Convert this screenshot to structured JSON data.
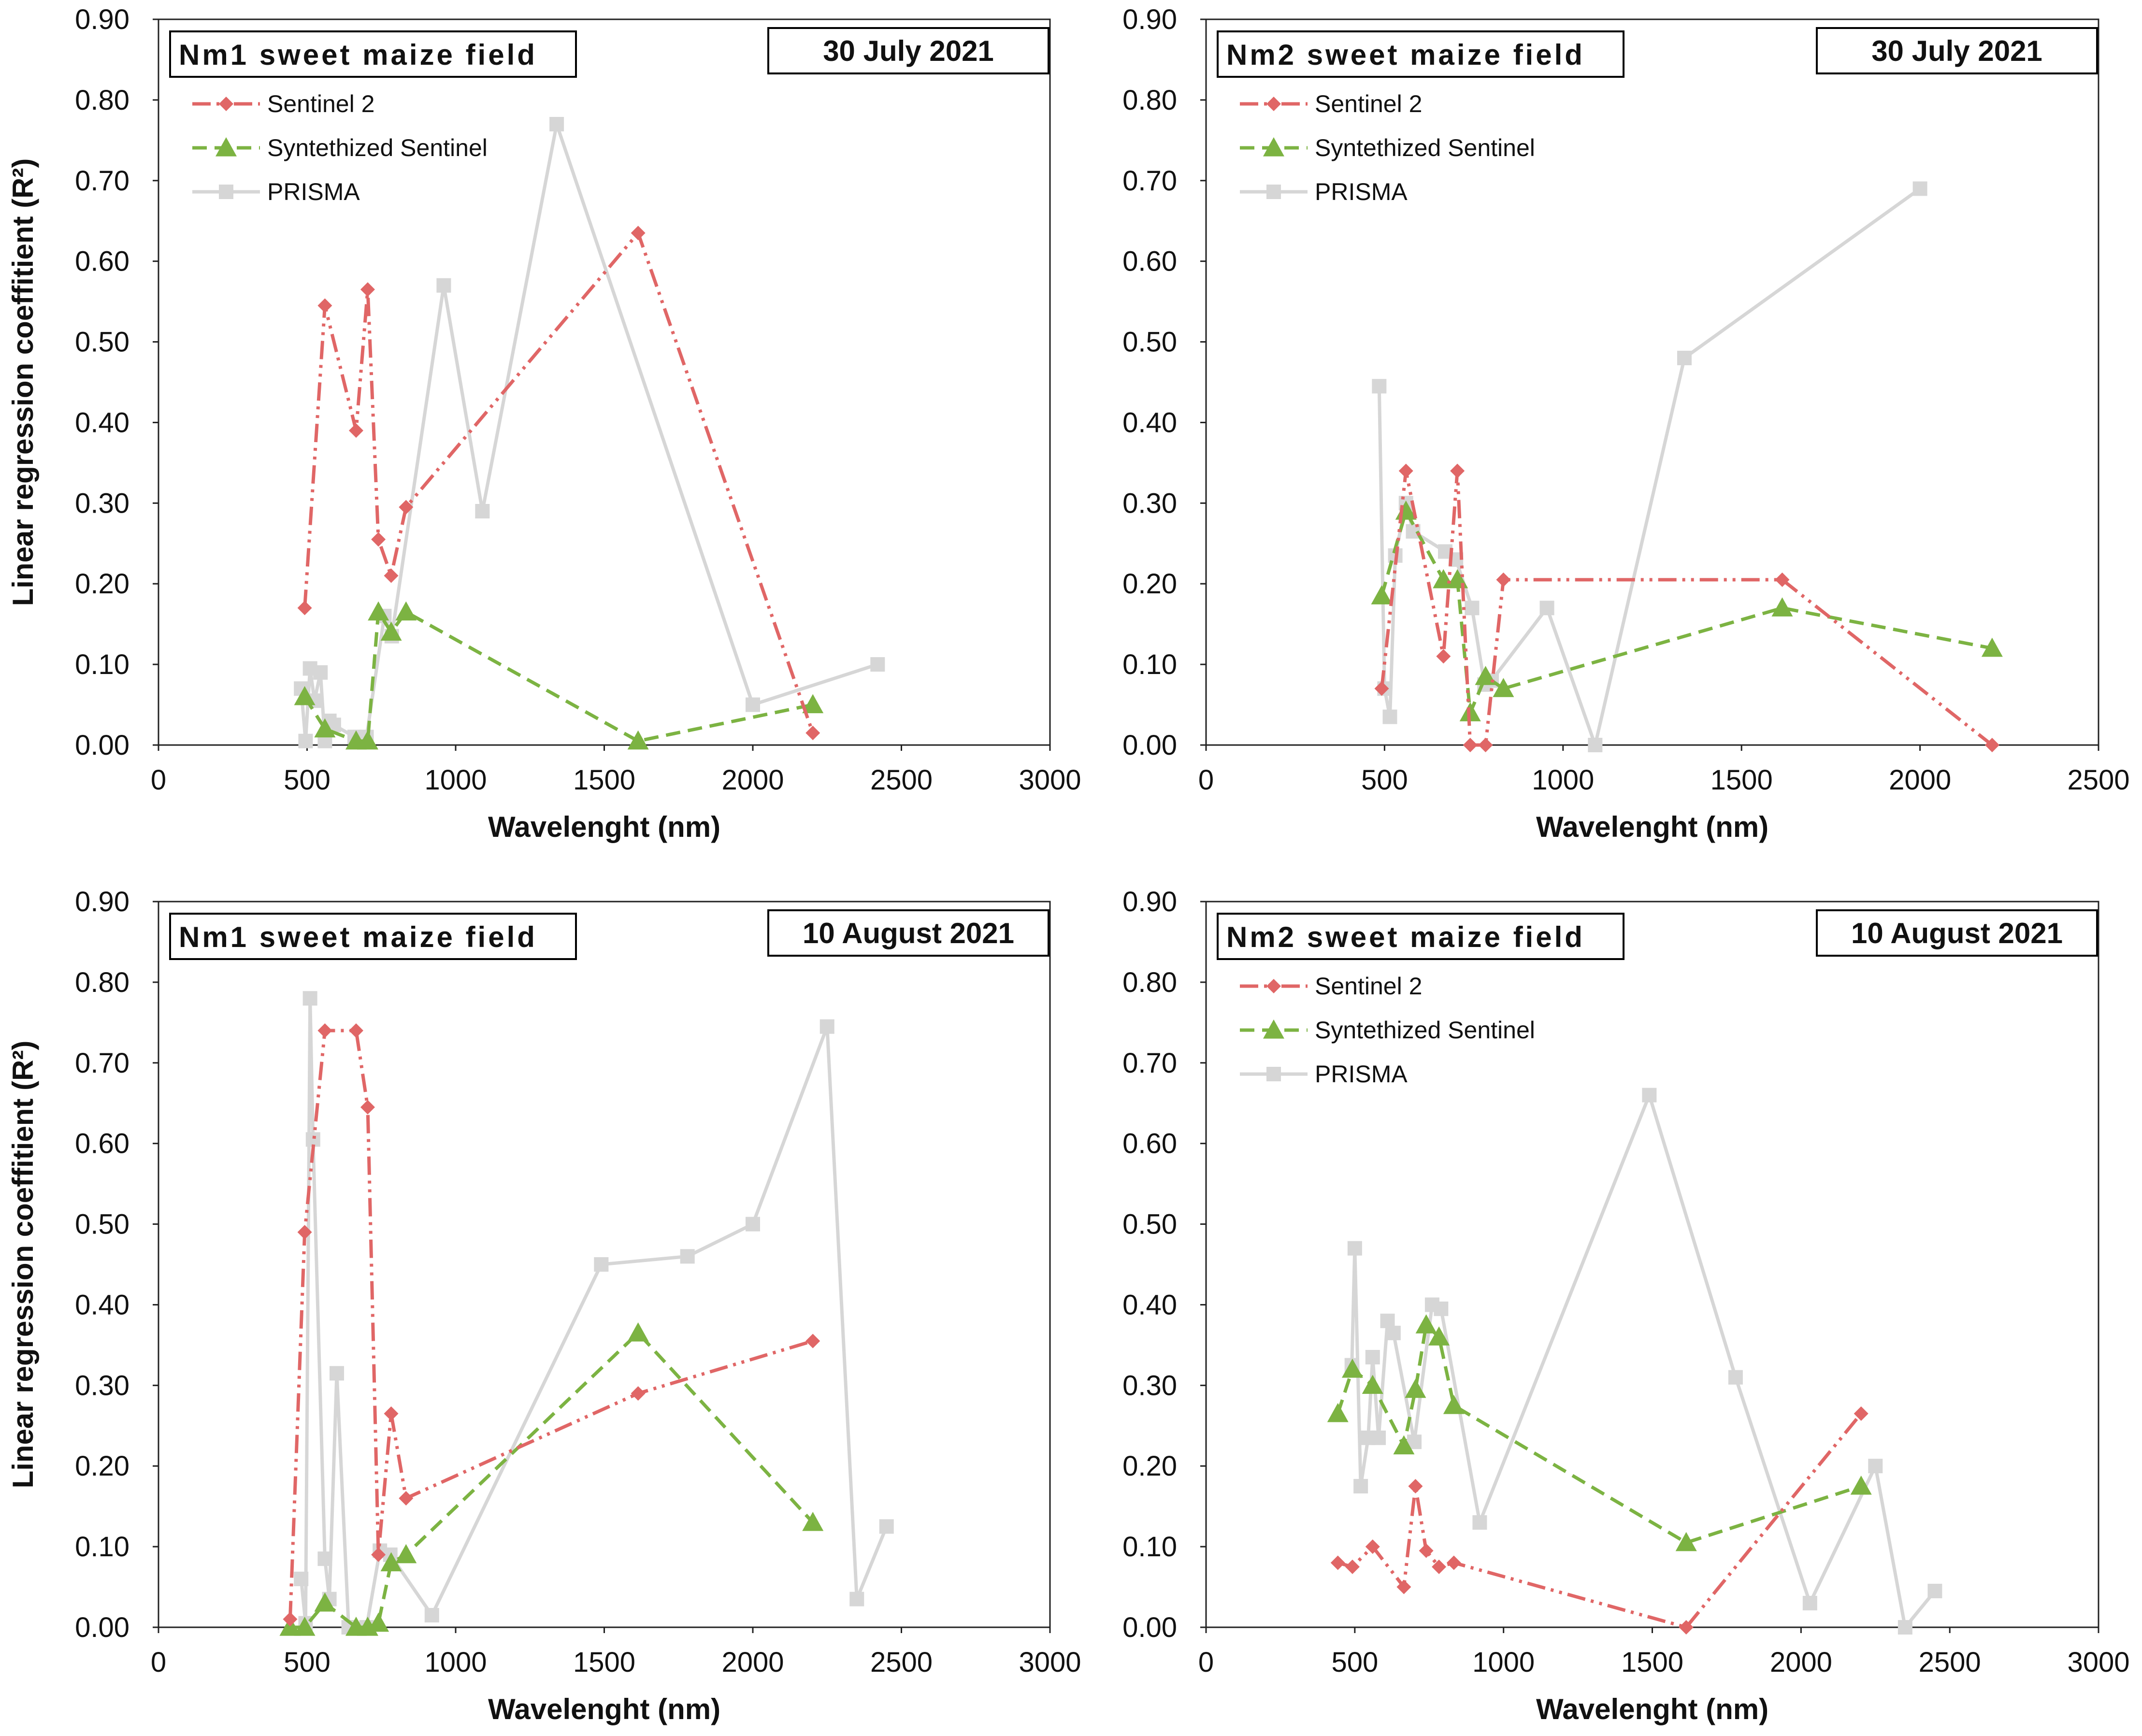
{
  "colors": {
    "sentinel2": "#e06666",
    "synth": "#7cb342",
    "prisma": "#d6d6d6",
    "axis": "#222222"
  },
  "chart_data": [
    {
      "type": "line",
      "title": "Nm1 sweet maize field",
      "date": "30 July 2021",
      "xlabel": "Wavelenght (nm)",
      "ylabel": "Linear regression coeffitient (R²)",
      "xlim": [
        0,
        3000
      ],
      "ylim": [
        0,
        0.9
      ],
      "x_ticks": [
        "0",
        "500",
        "1000",
        "1500",
        "2000",
        "2500",
        "3000"
      ],
      "y_ticks": [
        "0.00",
        "0.10",
        "0.20",
        "0.30",
        "0.40",
        "0.50",
        "0.60",
        "0.70",
        "0.80",
        "0.90"
      ],
      "legend": {
        "position": "top-left",
        "entries": [
          "Sentinel 2",
          "Syntethized Sentinel",
          "PRISMA"
        ]
      },
      "series": [
        {
          "name": "Sentinel 2",
          "marker": "diamond",
          "x": [
            492,
            560,
            665,
            704,
            740,
            783,
            833,
            1614,
            2202
          ],
          "y": [
            0.17,
            0.545,
            0.39,
            0.565,
            0.255,
            0.21,
            0.295,
            0.635,
            0.015
          ]
        },
        {
          "name": "Syntethized Sentinel",
          "marker": "triangle",
          "x": [
            492,
            560,
            665,
            704,
            740,
            783,
            833,
            1614,
            2202
          ],
          "y": [
            0.06,
            0.02,
            0.005,
            0.005,
            0.165,
            0.14,
            0.165,
            0.005,
            0.05
          ]
        },
        {
          "name": "PRISMA",
          "marker": "square",
          "x": [
            480,
            495,
            510,
            525,
            545,
            560,
            575,
            590,
            660,
            680,
            700,
            760,
            785,
            960,
            1090,
            1340,
            2000,
            2420
          ],
          "y": [
            0.07,
            0.005,
            0.095,
            0.055,
            0.09,
            0.005,
            0.03,
            0.025,
            0.01,
            0.01,
            0.01,
            0.16,
            0.135,
            0.57,
            0.29,
            0.77,
            0.05,
            0.1
          ]
        }
      ]
    },
    {
      "type": "line",
      "title": "Nm2 sweet maize field",
      "date": "30 July 2021",
      "xlabel": "Wavelenght (nm)",
      "ylabel": "",
      "xlim": [
        0,
        2500
      ],
      "ylim": [
        0,
        0.9
      ],
      "x_ticks": [
        "0",
        "500",
        "1000",
        "1500",
        "2000",
        "2500"
      ],
      "y_ticks": [
        "0.00",
        "0.10",
        "0.20",
        "0.30",
        "0.40",
        "0.50",
        "0.60",
        "0.70",
        "0.80",
        "0.90"
      ],
      "legend": {
        "position": "top-left",
        "entries": [
          "Sentinel 2",
          "Syntethized Sentinel",
          "PRISMA"
        ]
      },
      "series": [
        {
          "name": "Sentinel 2",
          "marker": "diamond",
          "x": [
            492,
            560,
            665,
            704,
            740,
            783,
            833,
            1614,
            2202
          ],
          "y": [
            0.07,
            0.34,
            0.11,
            0.34,
            0.0,
            0.0,
            0.205,
            0.205,
            0.0
          ]
        },
        {
          "name": "Syntethized Sentinel",
          "marker": "triangle",
          "x": [
            492,
            560,
            665,
            704,
            740,
            783,
            833,
            1614,
            2202
          ],
          "y": [
            0.185,
            0.29,
            0.205,
            0.205,
            0.04,
            0.085,
            0.07,
            0.17,
            0.12
          ]
        },
        {
          "name": "PRISMA",
          "marker": "square",
          "x": [
            485,
            500,
            515,
            530,
            560,
            580,
            670,
            700,
            745,
            780,
            800,
            955,
            1090,
            1340,
            2000
          ],
          "y": [
            0.445,
            0.07,
            0.035,
            0.235,
            0.3,
            0.265,
            0.24,
            0.23,
            0.17,
            0.075,
            0.08,
            0.17,
            0.0,
            0.48,
            0.69
          ]
        }
      ]
    },
    {
      "type": "line",
      "title": "Nm1 sweet maize field",
      "date": "10 August 2021",
      "xlabel": "Wavelenght (nm)",
      "ylabel": "Linear regression coeffitient (R²)",
      "xlim": [
        0,
        3000
      ],
      "ylim": [
        0,
        0.9
      ],
      "x_ticks": [
        "0",
        "500",
        "1000",
        "1500",
        "2000",
        "2500",
        "3000"
      ],
      "y_ticks": [
        "0.00",
        "0.10",
        "0.20",
        "0.30",
        "0.40",
        "0.50",
        "0.60",
        "0.70",
        "0.80",
        "0.90"
      ],
      "legend": {
        "position": "none",
        "entries": []
      },
      "series": [
        {
          "name": "Sentinel 2",
          "marker": "diamond",
          "x": [
            443,
            492,
            560,
            665,
            704,
            740,
            783,
            833,
            1614,
            2202
          ],
          "y": [
            0.01,
            0.49,
            0.74,
            0.74,
            0.645,
            0.09,
            0.265,
            0.16,
            0.29,
            0.355
          ]
        },
        {
          "name": "Syntethized Sentinel",
          "marker": "triangle",
          "x": [
            443,
            492,
            560,
            665,
            704,
            740,
            783,
            833,
            1614,
            2202
          ],
          "y": [
            0.0,
            0.0,
            0.03,
            0.0,
            0.0,
            0.005,
            0.08,
            0.09,
            0.365,
            0.13
          ]
        },
        {
          "name": "PRISMA",
          "marker": "square",
          "x": [
            480,
            495,
            510,
            520,
            560,
            575,
            600,
            640,
            700,
            745,
            780,
            920,
            1490,
            1780,
            2000,
            2250,
            2350,
            2450
          ],
          "y": [
            0.06,
            0.005,
            0.78,
            0.605,
            0.085,
            0.035,
            0.315,
            0.0,
            0.0,
            0.095,
            0.09,
            0.015,
            0.45,
            0.46,
            0.5,
            0.745,
            0.035,
            0.125
          ]
        }
      ]
    },
    {
      "type": "line",
      "title": "Nm2 sweet maize field",
      "date": "10 August 2021",
      "xlabel": "Wavelenght (nm)",
      "ylabel": "",
      "xlim": [
        0,
        3000
      ],
      "ylim": [
        0,
        0.9
      ],
      "x_ticks": [
        "0",
        "500",
        "1000",
        "1500",
        "2000",
        "2500",
        "3000"
      ],
      "y_ticks": [
        "0.00",
        "0.10",
        "0.20",
        "0.30",
        "0.40",
        "0.50",
        "0.60",
        "0.70",
        "0.80",
        "0.90"
      ],
      "legend": {
        "position": "top-left",
        "entries": [
          "Sentinel 2",
          "Syntethized Sentinel",
          "PRISMA"
        ]
      },
      "series": [
        {
          "name": "Sentinel 2",
          "marker": "diamond",
          "x": [
            443,
            492,
            560,
            665,
            704,
            740,
            783,
            833,
            1614,
            2202
          ],
          "y": [
            0.08,
            0.075,
            0.1,
            0.05,
            0.175,
            0.095,
            0.075,
            0.08,
            0.0,
            0.265
          ]
        },
        {
          "name": "Syntethized Sentinel",
          "marker": "triangle",
          "x": [
            443,
            492,
            560,
            665,
            704,
            740,
            783,
            833,
            1614,
            2202
          ],
          "y": [
            0.265,
            0.32,
            0.3,
            0.225,
            0.295,
            0.375,
            0.36,
            0.275,
            0.105,
            0.175
          ]
        },
        {
          "name": "PRISMA",
          "marker": "square",
          "x": [
            490,
            500,
            520,
            545,
            560,
            580,
            610,
            630,
            700,
            760,
            790,
            920,
            1490,
            1780,
            2030,
            2250,
            2350,
            2450
          ],
          "y": [
            0.325,
            0.47,
            0.175,
            0.235,
            0.335,
            0.235,
            0.38,
            0.365,
            0.23,
            0.4,
            0.395,
            0.13,
            0.66,
            0.31,
            0.03,
            0.2,
            0.0,
            0.045
          ]
        }
      ]
    }
  ]
}
